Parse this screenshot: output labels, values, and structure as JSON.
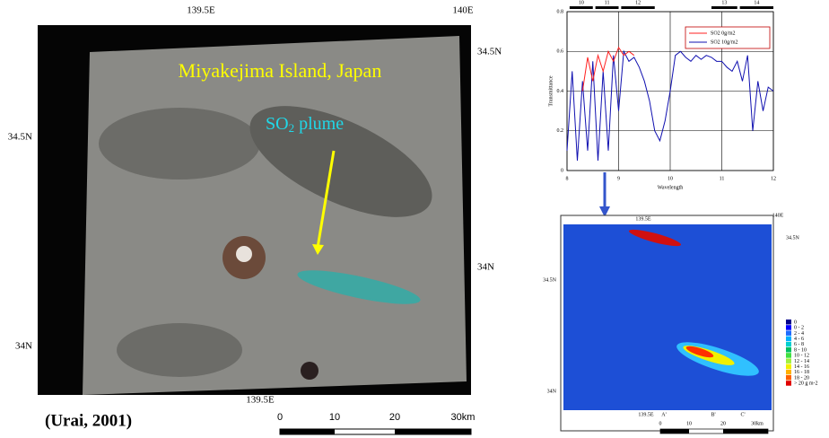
{
  "chart_data": {
    "type": "line",
    "x_label": "Wavelength",
    "y_label": "Transmittance",
    "xlim": [
      8,
      12
    ],
    "ylim": [
      0,
      0.8
    ],
    "xticks": [
      8,
      9,
      10,
      11,
      12
    ],
    "yticks": [
      0,
      0.2,
      0.4,
      0.6,
      0.8
    ],
    "grid": true,
    "legend": "upper right",
    "bands": [
      {
        "label": "10",
        "range": [
          8.05,
          8.5
        ]
      },
      {
        "label": "11",
        "range": [
          8.55,
          9.0
        ]
      },
      {
        "label": "12",
        "range": [
          9.05,
          9.7
        ]
      },
      {
        "label": "13",
        "range": [
          10.8,
          11.3
        ]
      },
      {
        "label": "14",
        "range": [
          11.35,
          12.0
        ]
      }
    ],
    "series": [
      {
        "name": "SO2 0g/m2",
        "color": "#ff2020",
        "x": [
          8.3,
          8.4,
          8.5,
          8.6,
          8.7,
          8.8,
          8.9,
          9.0,
          9.1,
          9.2,
          9.3
        ],
        "values": [
          0.4,
          0.57,
          0.45,
          0.58,
          0.5,
          0.6,
          0.55,
          0.62,
          0.58,
          0.6,
          0.58
        ]
      },
      {
        "name": "SO2 10g/m2",
        "color": "#1010b0",
        "x": [
          8.0,
          8.1,
          8.2,
          8.3,
          8.4,
          8.5,
          8.6,
          8.7,
          8.8,
          8.9,
          9.0,
          9.1,
          9.2,
          9.3,
          9.4,
          9.5,
          9.6,
          9.7,
          9.8,
          9.9,
          10.0,
          10.1,
          10.2,
          10.3,
          10.4,
          10.5,
          10.6,
          10.7,
          10.8,
          10.9,
          11.0,
          11.1,
          11.2,
          11.3,
          11.4,
          11.5,
          11.6,
          11.7,
          11.8,
          11.9,
          12.0
        ],
        "values": [
          0.1,
          0.5,
          0.05,
          0.45,
          0.1,
          0.55,
          0.05,
          0.5,
          0.1,
          0.58,
          0.3,
          0.6,
          0.55,
          0.57,
          0.52,
          0.45,
          0.35,
          0.2,
          0.15,
          0.25,
          0.4,
          0.58,
          0.6,
          0.57,
          0.55,
          0.58,
          0.56,
          0.58,
          0.57,
          0.55,
          0.55,
          0.52,
          0.5,
          0.55,
          0.45,
          0.58,
          0.2,
          0.45,
          0.3,
          0.42,
          0.4
        ]
      }
    ]
  },
  "satellite_image": {
    "title": "Miyakejima Island, Japan",
    "plume_label": {
      "text": "SO",
      "subscript": "2",
      "suffix": "plume"
    },
    "top_labels": [
      "139.5E",
      "140E"
    ],
    "bottom_labels": [
      "139.5E"
    ],
    "left_labels": [
      "34.5N",
      "34N"
    ],
    "right_labels": [
      "34.5N",
      "34N"
    ],
    "scale_labels": [
      "0",
      "10",
      "20",
      "30km"
    ],
    "credit": "(Urai, 2001)"
  },
  "so2_map": {
    "top_labels": [
      "139.5E",
      "140E"
    ],
    "right_labels": [
      "34.5N"
    ],
    "left_labels": [
      "34.5N",
      "34N"
    ],
    "bottom_labels": [
      "139.5E",
      "A'",
      "B'",
      "C'"
    ],
    "scale_labels": [
      "0",
      "10",
      "20",
      "30km"
    ],
    "legend": [
      {
        "label": "0",
        "color": "#00008b"
      },
      {
        "label": "0 - 2",
        "color": "#0000ff"
      },
      {
        "label": "2 - 4",
        "color": "#1e6bff"
      },
      {
        "label": "4 - 6",
        "color": "#00b0ff"
      },
      {
        "label": "6 - 8",
        "color": "#00d0d0"
      },
      {
        "label": "8 - 10",
        "color": "#00c060"
      },
      {
        "label": "10 - 12",
        "color": "#40e040"
      },
      {
        "label": "12 - 14",
        "color": "#a0f040"
      },
      {
        "label": "14 - 16",
        "color": "#f0f000"
      },
      {
        "label": "16 - 18",
        "color": "#ffb000"
      },
      {
        "label": "18 - 20",
        "color": "#ff6000"
      },
      {
        "label": "> 20 g m-2",
        "color": "#e00000"
      }
    ]
  }
}
